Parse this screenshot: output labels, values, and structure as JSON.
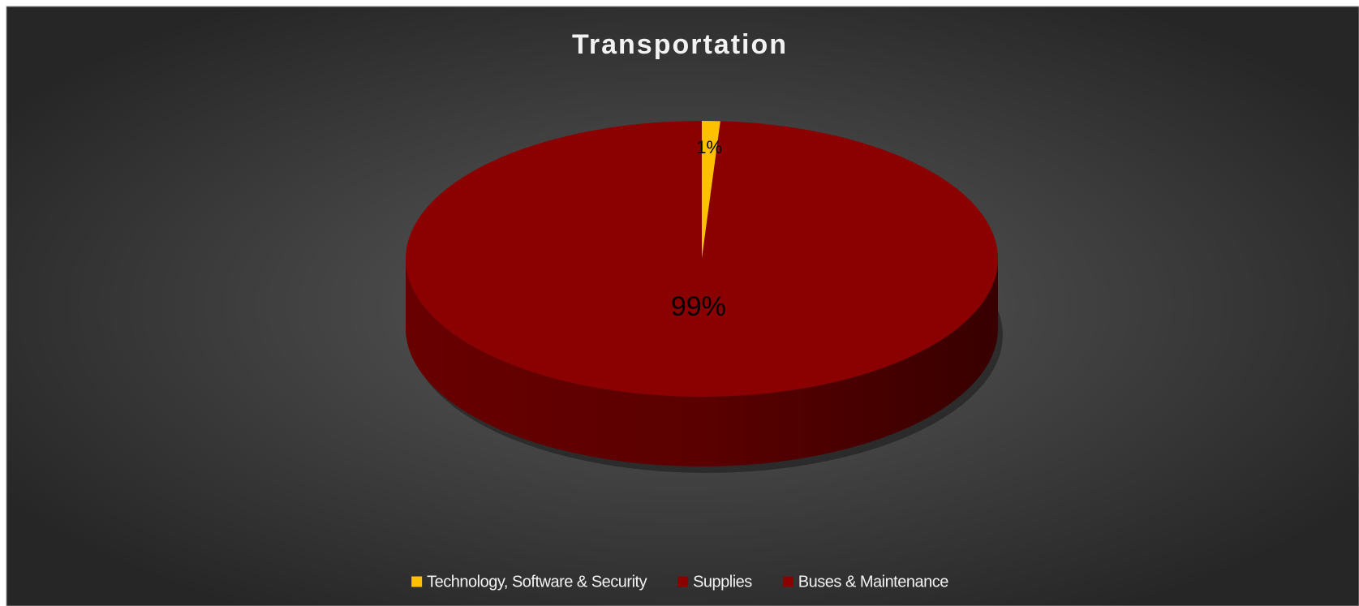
{
  "chart_data": {
    "type": "pie3d",
    "title": "Transportation",
    "categories": [
      "Technology, Software & Security",
      "Supplies",
      "Buses & Maintenance"
    ],
    "values": [
      1,
      0,
      99
    ],
    "value_labels": [
      "1%",
      null,
      "99%"
    ],
    "colors": [
      "#ffc000",
      "#8c0000",
      "#8b0000"
    ],
    "legend": "bottom"
  }
}
